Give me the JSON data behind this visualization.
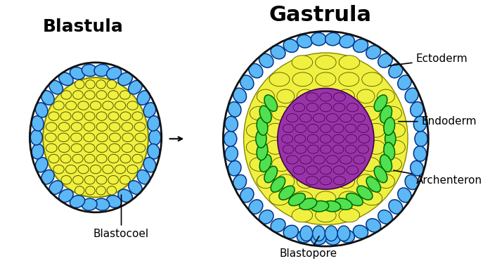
{
  "blastula_label": "Blastula",
  "gastrula_label": "Gastrula",
  "blastocoel_label": "Blastocoel",
  "blastopore_label": "Blastopore",
  "ectoderm_label": "Ectoderm",
  "endoderm_label": "Endoderm",
  "archenteron_label": "Archenteron",
  "bg_color": "#ffffff",
  "blue_color": "#5bb8f5",
  "yellow_color": "#f0f040",
  "green_color": "#50e050",
  "purple_color": "#9933aa",
  "dark_outline": "#111111",
  "label_fontsize": 11,
  "title_fontsize_blastula": 18,
  "title_fontsize_gastrula": 22
}
